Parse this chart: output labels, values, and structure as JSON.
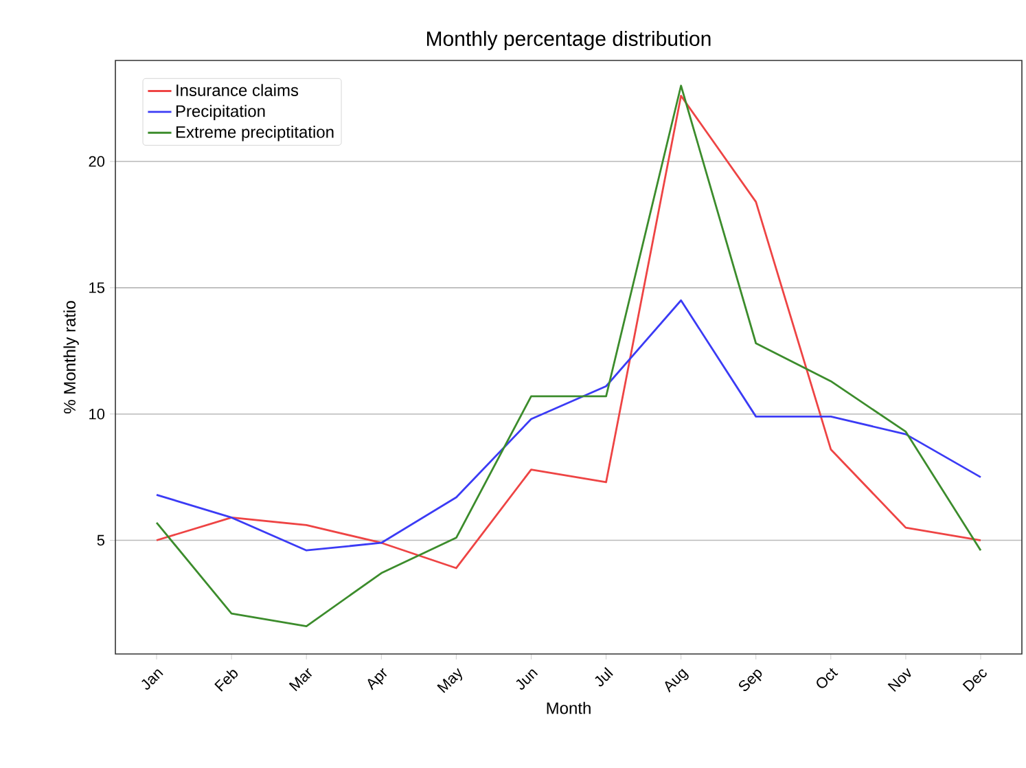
{
  "chart_data": {
    "type": "line",
    "title": "Monthly percentage distribution",
    "xlabel": "Month",
    "ylabel": "% Monthly ratio",
    "categories": [
      "Jan",
      "Feb",
      "Mar",
      "Apr",
      "May",
      "Jun",
      "Jul",
      "Aug",
      "Sep",
      "Oct",
      "Nov",
      "Dec"
    ],
    "series": [
      {
        "name": "Insurance claims",
        "color": "#ee4444",
        "values": [
          5.0,
          5.9,
          5.6,
          4.9,
          3.9,
          7.8,
          7.3,
          22.6,
          18.4,
          8.6,
          5.5,
          5.0
        ]
      },
      {
        "name": "Precipitation",
        "color": "#3b3bf5",
        "values": [
          6.8,
          5.9,
          4.6,
          4.9,
          6.7,
          9.8,
          11.1,
          14.5,
          9.9,
          9.9,
          9.2,
          7.5
        ]
      },
      {
        "name": "Extreme preciptitation",
        "color": "#3c8c2c",
        "values": [
          5.7,
          2.1,
          1.6,
          3.7,
          5.1,
          10.7,
          10.7,
          23.0,
          12.8,
          11.3,
          9.3,
          4.6
        ]
      }
    ],
    "ylim": [
      0.5,
      24.0
    ],
    "yticks": [
      5,
      10,
      15,
      20
    ],
    "grid": "y",
    "legend": "top left",
    "marker": "none",
    "line_style": "solid"
  }
}
